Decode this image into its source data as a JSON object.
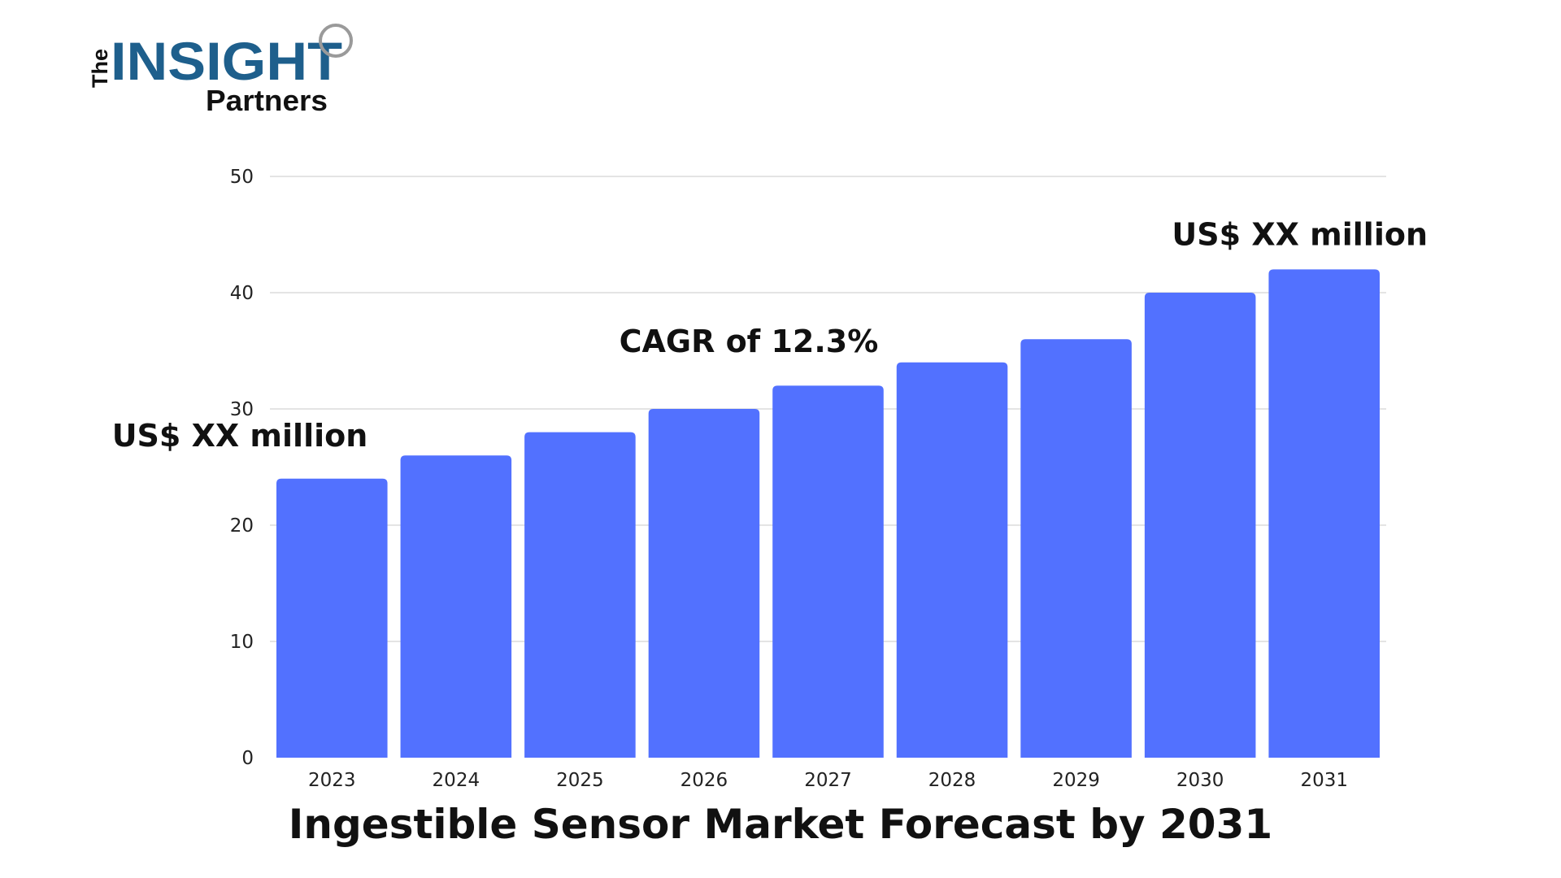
{
  "logo": {
    "the": "The",
    "insight": "INSIGHT",
    "partners": "Partners"
  },
  "chart_data": {
    "type": "bar",
    "title": "Ingestible Sensor Market Forecast by 2031",
    "xlabel": "",
    "ylabel": "",
    "categories": [
      "2023",
      "2024",
      "2025",
      "2026",
      "2027",
      "2028",
      "2029",
      "2030",
      "2031"
    ],
    "values": [
      24,
      26,
      28,
      30,
      32,
      34,
      36,
      40,
      42
    ],
    "ylim": [
      0,
      50
    ],
    "yticks": [
      0,
      10,
      20,
      30,
      40,
      50
    ],
    "grid": true,
    "legend": "none",
    "bar_color": "#5271ff",
    "annotations": [
      {
        "text": "US$ XX million",
        "anchor": "2023"
      },
      {
        "text": "CAGR of 12.3%",
        "anchor": "2026"
      },
      {
        "text": "US$ XX million",
        "anchor": "2031"
      }
    ]
  }
}
